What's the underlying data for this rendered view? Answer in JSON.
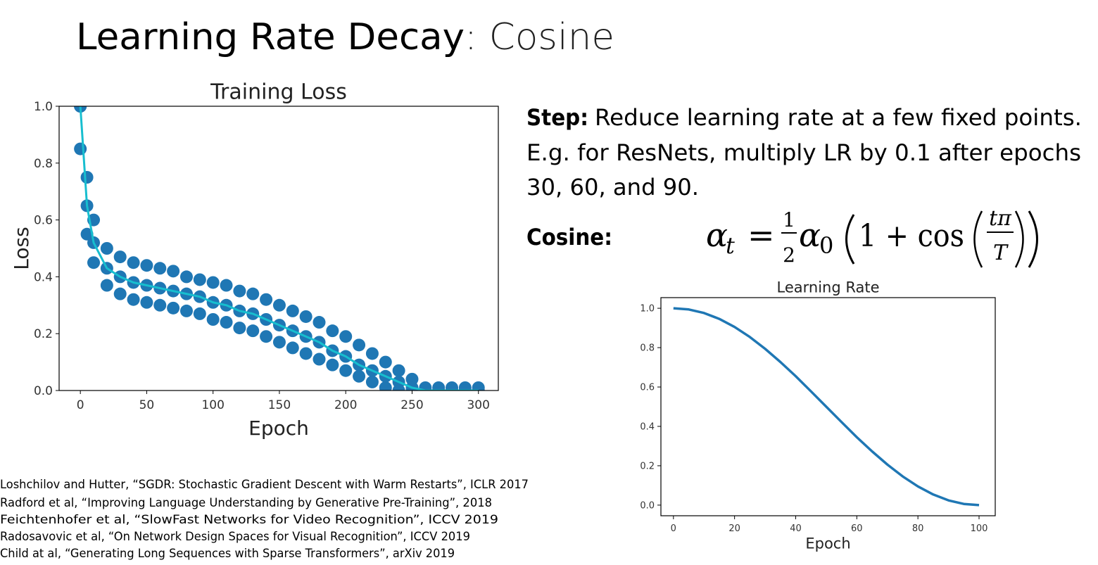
{
  "title": {
    "main": "Learning Rate Decay",
    "rest": ": Cosine"
  },
  "step": {
    "label": "Step:",
    "lines": [
      "Reduce learning rate at a few fixed points.",
      "E.g. for ResNets, multiply LR by 0.1 after epochs",
      "30, 60, and 90."
    ]
  },
  "cosine": {
    "label": "Cosine:"
  },
  "formula": {
    "alpha": "α",
    "sub_t": "t",
    "eq": "=",
    "num": "1",
    "den": "2",
    "alpha0": "α",
    "sub_0": "0",
    "one_plus_cos": "1 + cos",
    "inner_num": "tπ",
    "inner_den": "T"
  },
  "references": [
    "Loshchilov and Hutter, “SGDR: Stochastic Gradient Descent with Warm Restarts”, ICLR 2017",
    "Radford et al, “Improving Language Understanding by Generative Pre-Training”, 2018",
    "Feichtenhofer et al, “SlowFast Networks for Video Recognition”, ICCV 2019",
    "Radosavovic et al, “On Network Design Spaces for Visual Recognition”, ICCV 2019",
    "Child at al, “Generating Long Sequences with Sparse Transformers”, arXiv 2019"
  ],
  "chart_data": [
    {
      "type": "scatter",
      "title": "Training Loss",
      "x_label": "Epoch",
      "y_label": "Loss",
      "x": [
        0,
        5,
        10,
        20,
        30,
        40,
        50,
        60,
        70,
        80,
        90,
        100,
        110,
        120,
        130,
        140,
        150,
        160,
        170,
        180,
        190,
        200,
        210,
        220,
        230,
        240,
        250,
        260,
        270,
        280,
        290,
        300
      ],
      "series": [
        {
          "color": "#1f77b4",
          "values": [
            1.0,
            0.75,
            0.6,
            0.5,
            0.47,
            0.45,
            0.44,
            0.43,
            0.42,
            0.4,
            0.39,
            0.38,
            0.37,
            0.35,
            0.34,
            0.32,
            0.3,
            0.28,
            0.26,
            0.24,
            0.21,
            0.19,
            0.16,
            0.13,
            0.1,
            0.07,
            0.04,
            0.01,
            0.01,
            0.01,
            0.01,
            0.01
          ]
        },
        {
          "color": "#1f77b4",
          "values": [
            0.85,
            0.55,
            0.45,
            0.37,
            0.34,
            0.32,
            0.31,
            0.3,
            0.29,
            0.28,
            0.27,
            0.25,
            0.24,
            0.22,
            0.21,
            0.19,
            0.17,
            0.15,
            0.13,
            0.11,
            0.09,
            0.07,
            0.05,
            0.03,
            0.01,
            0,
            0,
            0,
            0,
            0,
            0,
            0
          ]
        },
        {
          "color": "#1f77b4",
          "values": [
            1.0,
            0.65,
            0.52,
            0.43,
            0.4,
            0.38,
            0.37,
            0.36,
            0.35,
            0.34,
            0.33,
            0.31,
            0.3,
            0.28,
            0.27,
            0.25,
            0.23,
            0.21,
            0.19,
            0.17,
            0.14,
            0.12,
            0.09,
            0.07,
            0.05,
            0.03,
            0.01,
            0,
            0,
            0,
            0,
            0
          ]
        },
        {
          "type": "line",
          "color": "#17becf",
          "values": [
            1.0,
            0.65,
            0.52,
            0.43,
            0.4,
            0.38,
            0.37,
            0.36,
            0.35,
            0.34,
            0.33,
            0.31,
            0.3,
            0.28,
            0.27,
            0.25,
            0.23,
            0.21,
            0.19,
            0.17,
            0.14,
            0.12,
            0.09,
            0.07,
            0.05,
            0.03,
            0.01,
            0,
            0,
            0,
            0,
            0
          ]
        }
      ],
      "xlim": [
        -16,
        315
      ],
      "ylim": [
        0,
        1.0
      ],
      "xticks": [
        0,
        50,
        100,
        150,
        200,
        250,
        300
      ],
      "yticks": [
        {
          "value": 0,
          "label": "0.0"
        },
        {
          "value": 0.2,
          "label": "0.2"
        },
        {
          "value": 0.4,
          "label": "0.4"
        },
        {
          "value": 0.6,
          "label": "0.6"
        },
        {
          "value": 0.8,
          "label": "0.8"
        },
        {
          "value": 1.0,
          "label": "1.0"
        }
      ]
    },
    {
      "type": "line",
      "title": "Learning Rate",
      "x_label": "Epoch",
      "x": [
        0,
        5,
        10,
        15,
        20,
        25,
        30,
        35,
        40,
        45,
        50,
        55,
        60,
        65,
        70,
        75,
        80,
        85,
        90,
        95,
        100
      ],
      "series": [
        {
          "color": "#1f77b4",
          "values": [
            1.0,
            0.994,
            0.976,
            0.946,
            0.905,
            0.854,
            0.794,
            0.727,
            0.655,
            0.578,
            0.5,
            0.422,
            0.345,
            0.273,
            0.206,
            0.146,
            0.095,
            0.054,
            0.024,
            0.006,
            0.0
          ]
        }
      ],
      "xlim": [
        -4.1,
        105.3
      ],
      "ylim": [
        -0.054,
        1.054
      ],
      "xticks": [
        0,
        20,
        40,
        60,
        80,
        100
      ],
      "yticks": [
        {
          "value": 0,
          "label": "0.0"
        },
        {
          "value": 0.2,
          "label": "0.2"
        },
        {
          "value": 0.4,
          "label": "0.4"
        },
        {
          "value": 0.6,
          "label": "0.6"
        },
        {
          "value": 0.8,
          "label": "0.8"
        },
        {
          "value": 1.0,
          "label": "1.0"
        }
      ]
    }
  ]
}
